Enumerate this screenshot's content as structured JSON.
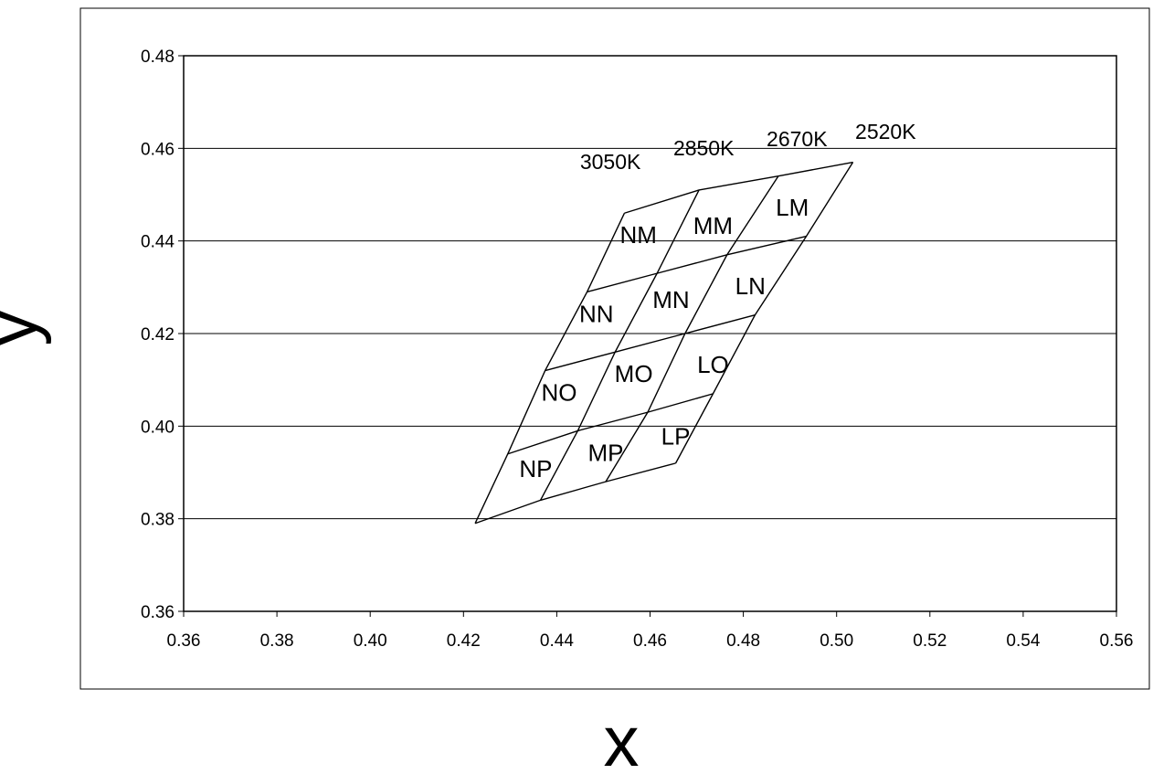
{
  "chart_data": {
    "type": "diagram",
    "xlabel": "x",
    "ylabel": "y",
    "xlim": [
      0.36,
      0.56
    ],
    "ylim": [
      0.36,
      0.48
    ],
    "x_ticks": [
      "0.36",
      "0.38",
      "0.40",
      "0.42",
      "0.44",
      "0.46",
      "0.48",
      "0.50",
      "0.52",
      "0.54",
      "0.56"
    ],
    "y_ticks": [
      "0.36",
      "0.38",
      "0.40",
      "0.42",
      "0.44",
      "0.46",
      "0.48"
    ],
    "grid": "horizontal",
    "cct_labels": [
      {
        "text": "3050K",
        "x": 0.4515,
        "y": 0.4555
      },
      {
        "text": "2850K",
        "x": 0.4715,
        "y": 0.4585
      },
      {
        "text": "2670K",
        "x": 0.4915,
        "y": 0.4605
      },
      {
        "text": "2520K",
        "x": 0.5105,
        "y": 0.462
      }
    ],
    "grid_nodes": [
      [
        [
          0.4225,
          0.379
        ],
        [
          0.4365,
          0.384
        ],
        [
          0.4505,
          0.388
        ],
        [
          0.4655,
          0.392
        ]
      ],
      [
        [
          0.4295,
          0.394
        ],
        [
          0.4445,
          0.399
        ],
        [
          0.4595,
          0.403
        ],
        [
          0.4735,
          0.407
        ]
      ],
      [
        [
          0.4375,
          0.412
        ],
        [
          0.4525,
          0.416
        ],
        [
          0.4675,
          0.42
        ],
        [
          0.4825,
          0.424
        ]
      ],
      [
        [
          0.4465,
          0.429
        ],
        [
          0.4615,
          0.433
        ],
        [
          0.4765,
          0.437
        ],
        [
          0.4935,
          0.441
        ]
      ],
      [
        [
          0.4545,
          0.446
        ],
        [
          0.4705,
          0.451
        ],
        [
          0.4875,
          0.454
        ],
        [
          0.5035,
          0.457
        ]
      ]
    ],
    "cells": [
      {
        "text": "NP",
        "x": 0.4355,
        "y": 0.389
      },
      {
        "text": "MP",
        "x": 0.4505,
        "y": 0.3925
      },
      {
        "text": "LP",
        "x": 0.4655,
        "y": 0.396
      },
      {
        "text": "NO",
        "x": 0.4405,
        "y": 0.4055
      },
      {
        "text": "MO",
        "x": 0.4565,
        "y": 0.4095
      },
      {
        "text": "LO",
        "x": 0.4735,
        "y": 0.4115
      },
      {
        "text": "NN",
        "x": 0.4485,
        "y": 0.4225
      },
      {
        "text": "MN",
        "x": 0.4645,
        "y": 0.4255
      },
      {
        "text": "LN",
        "x": 0.4815,
        "y": 0.4285
      },
      {
        "text": "NM",
        "x": 0.4575,
        "y": 0.4395
      },
      {
        "text": "MM",
        "x": 0.4735,
        "y": 0.4415
      },
      {
        "text": "LM",
        "x": 0.4905,
        "y": 0.4455
      }
    ]
  }
}
